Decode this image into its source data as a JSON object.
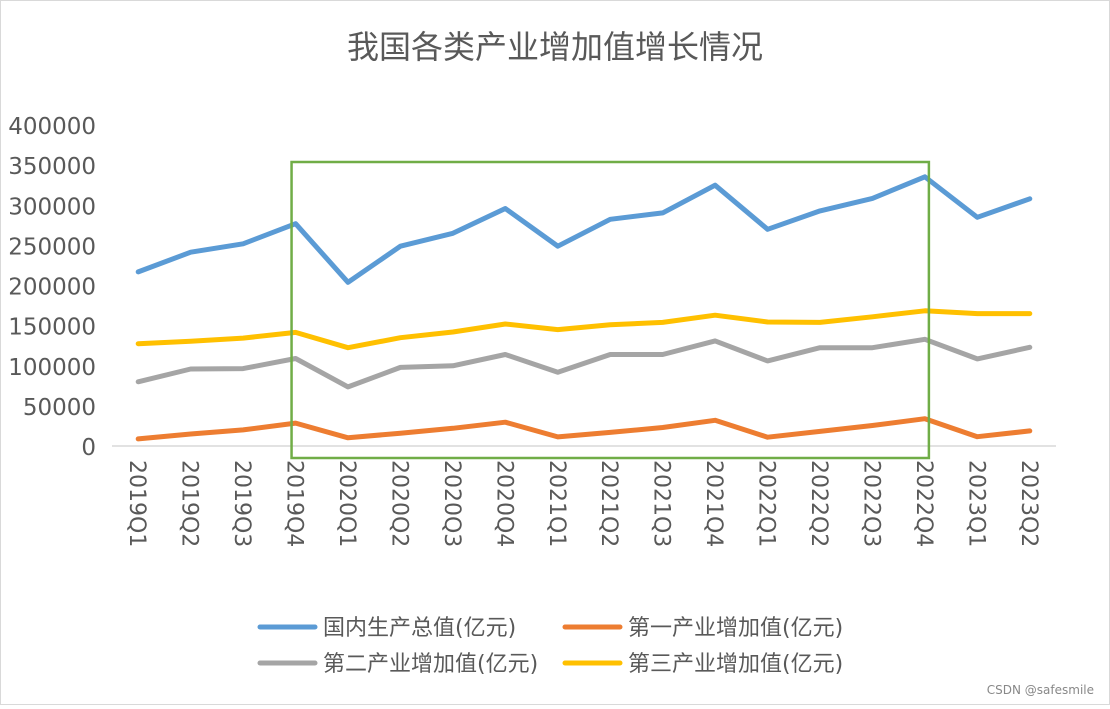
{
  "chart_data": {
    "type": "line",
    "title": "我国各类产业增加值增长情况",
    "xlabel": "",
    "ylabel": "",
    "ylim": [
      0,
      400000
    ],
    "yticks": [
      "0",
      "50000",
      "100000",
      "150000",
      "200000",
      "250000",
      "300000",
      "350000",
      "400000"
    ],
    "grid": false,
    "legend_position": "bottom",
    "categories": [
      "2019Q1",
      "2019Q2",
      "2019Q3",
      "2019Q4",
      "2020Q1",
      "2020Q2",
      "2020Q3",
      "2020Q4",
      "2021Q1",
      "2021Q2",
      "2021Q3",
      "2021Q4",
      "2022Q1",
      "2022Q2",
      "2022Q3",
      "2022Q4",
      "2023Q1",
      "2023Q2"
    ],
    "series": [
      {
        "name": "国内生产总值(亿元)",
        "color": "#5b9bd5",
        "values": [
          217000,
          241500,
          252000,
          277000,
          204000,
          249000,
          265000,
          296000,
          249000,
          282500,
          290500,
          325000,
          270000,
          293000,
          308500,
          335500,
          285000,
          308000
        ]
      },
      {
        "name": "第一产业增加值(亿元)",
        "color": "#ed7d31",
        "values": [
          8800,
          15000,
          20000,
          28500,
          10200,
          15900,
          22000,
          29700,
          11300,
          17000,
          23000,
          32000,
          11000,
          18200,
          25500,
          34000,
          11600,
          18800
        ]
      },
      {
        "name": "第二产业增加值(亿元)",
        "color": "#a5a5a5",
        "values": [
          80000,
          96000,
          96500,
          109000,
          73600,
          98000,
          100000,
          114000,
          92000,
          114000,
          114000,
          131000,
          106000,
          122500,
          122500,
          133000,
          108500,
          123000
        ]
      },
      {
        "name": "第三产业增加值(亿元)",
        "color": "#ffc000",
        "values": [
          127500,
          130500,
          134500,
          141500,
          122500,
          135000,
          142000,
          152000,
          145000,
          151000,
          154000,
          163000,
          154500,
          154000,
          161000,
          168500,
          165000,
          165000
        ]
      }
    ],
    "highlight_box": {
      "from": "2019Q4",
      "to": "2022Q4",
      "color": "#70ad47"
    }
  },
  "watermark": "CSDN @safesmile"
}
